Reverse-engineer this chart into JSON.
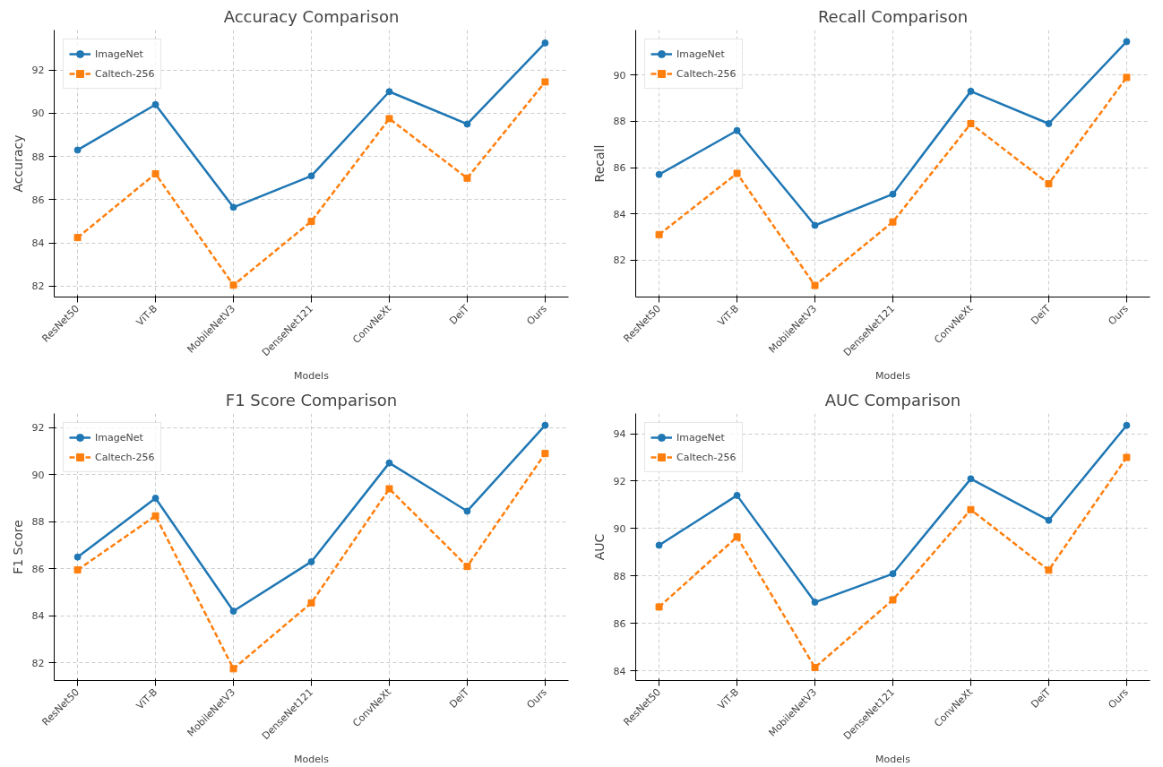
{
  "chart_data": [
    {
      "type": "line",
      "title": "Accuracy Comparison",
      "xlabel": "Models",
      "ylabel": "Accuracy",
      "categories": [
        "ResNet50",
        "ViT-B",
        "MobileNetV3",
        "DenseNet121",
        "ConvNeXt",
        "DeiT",
        "Ours"
      ],
      "ylim": [
        81.5,
        93.85
      ],
      "yticks": [
        82,
        84,
        86,
        88,
        90,
        92
      ],
      "grid": true,
      "legend": "top left",
      "series": [
        {
          "name": "ImageNet",
          "color": "#1f77b4",
          "marker": "circle",
          "line_style": "solid",
          "values": [
            88.3,
            90.4,
            85.65,
            87.1,
            91.0,
            89.5,
            93.25
          ]
        },
        {
          "name": "Caltech-256",
          "color": "#ff7f0e",
          "marker": "square",
          "line_style": "dashed",
          "values": [
            84.25,
            87.2,
            82.05,
            85.0,
            89.75,
            87.0,
            91.45
          ]
        }
      ]
    },
    {
      "type": "line",
      "title": "Recall Comparison",
      "xlabel": "Models",
      "ylabel": "Recall",
      "categories": [
        "ResNet50",
        "ViT-B",
        "MobileNetV3",
        "DenseNet121",
        "ConvNeXt",
        "DeiT",
        "Ours"
      ],
      "ylim": [
        80.4,
        91.95
      ],
      "yticks": [
        82,
        84,
        86,
        88,
        90
      ],
      "grid": true,
      "legend": "top left",
      "series": [
        {
          "name": "ImageNet",
          "color": "#1f77b4",
          "marker": "circle",
          "line_style": "solid",
          "values": [
            85.7,
            87.6,
            83.5,
            84.85,
            89.3,
            87.9,
            91.45
          ]
        },
        {
          "name": "Caltech-256",
          "color": "#ff7f0e",
          "marker": "square",
          "line_style": "dashed",
          "values": [
            83.1,
            85.75,
            80.9,
            83.65,
            87.9,
            85.3,
            89.9
          ]
        }
      ]
    },
    {
      "type": "line",
      "title": "F1 Score Comparison",
      "xlabel": "Models",
      "ylabel": "F1 Score",
      "categories": [
        "ResNet50",
        "ViT-B",
        "MobileNetV3",
        "DenseNet121",
        "ConvNeXt",
        "DeiT",
        "Ours"
      ],
      "ylim": [
        81.25,
        92.6
      ],
      "yticks": [
        82,
        84,
        86,
        88,
        90,
        92
      ],
      "grid": true,
      "legend": "top left",
      "series": [
        {
          "name": "ImageNet",
          "color": "#1f77b4",
          "marker": "circle",
          "line_style": "solid",
          "values": [
            86.5,
            89.0,
            84.2,
            86.3,
            90.5,
            88.45,
            92.1
          ]
        },
        {
          "name": "Caltech-256",
          "color": "#ff7f0e",
          "marker": "square",
          "line_style": "dashed",
          "values": [
            85.95,
            88.25,
            81.75,
            84.55,
            89.4,
            86.1,
            90.9
          ]
        }
      ]
    },
    {
      "type": "line",
      "title": "AUC Comparison",
      "xlabel": "Models",
      "ylabel": "AUC",
      "categories": [
        "ResNet50",
        "ViT-B",
        "MobileNetV3",
        "DenseNet121",
        "ConvNeXt",
        "DeiT",
        "Ours"
      ],
      "ylim": [
        83.6,
        94.85
      ],
      "yticks": [
        84,
        86,
        88,
        90,
        92,
        94
      ],
      "grid": true,
      "legend": "top left",
      "series": [
        {
          "name": "ImageNet",
          "color": "#1f77b4",
          "marker": "circle",
          "line_style": "solid",
          "values": [
            89.3,
            91.4,
            86.9,
            88.1,
            92.1,
            90.35,
            94.35
          ]
        },
        {
          "name": "Caltech-256",
          "color": "#ff7f0e",
          "marker": "square",
          "line_style": "dashed",
          "values": [
            86.7,
            89.65,
            84.15,
            87.0,
            90.8,
            88.25,
            93.0
          ]
        }
      ]
    }
  ]
}
